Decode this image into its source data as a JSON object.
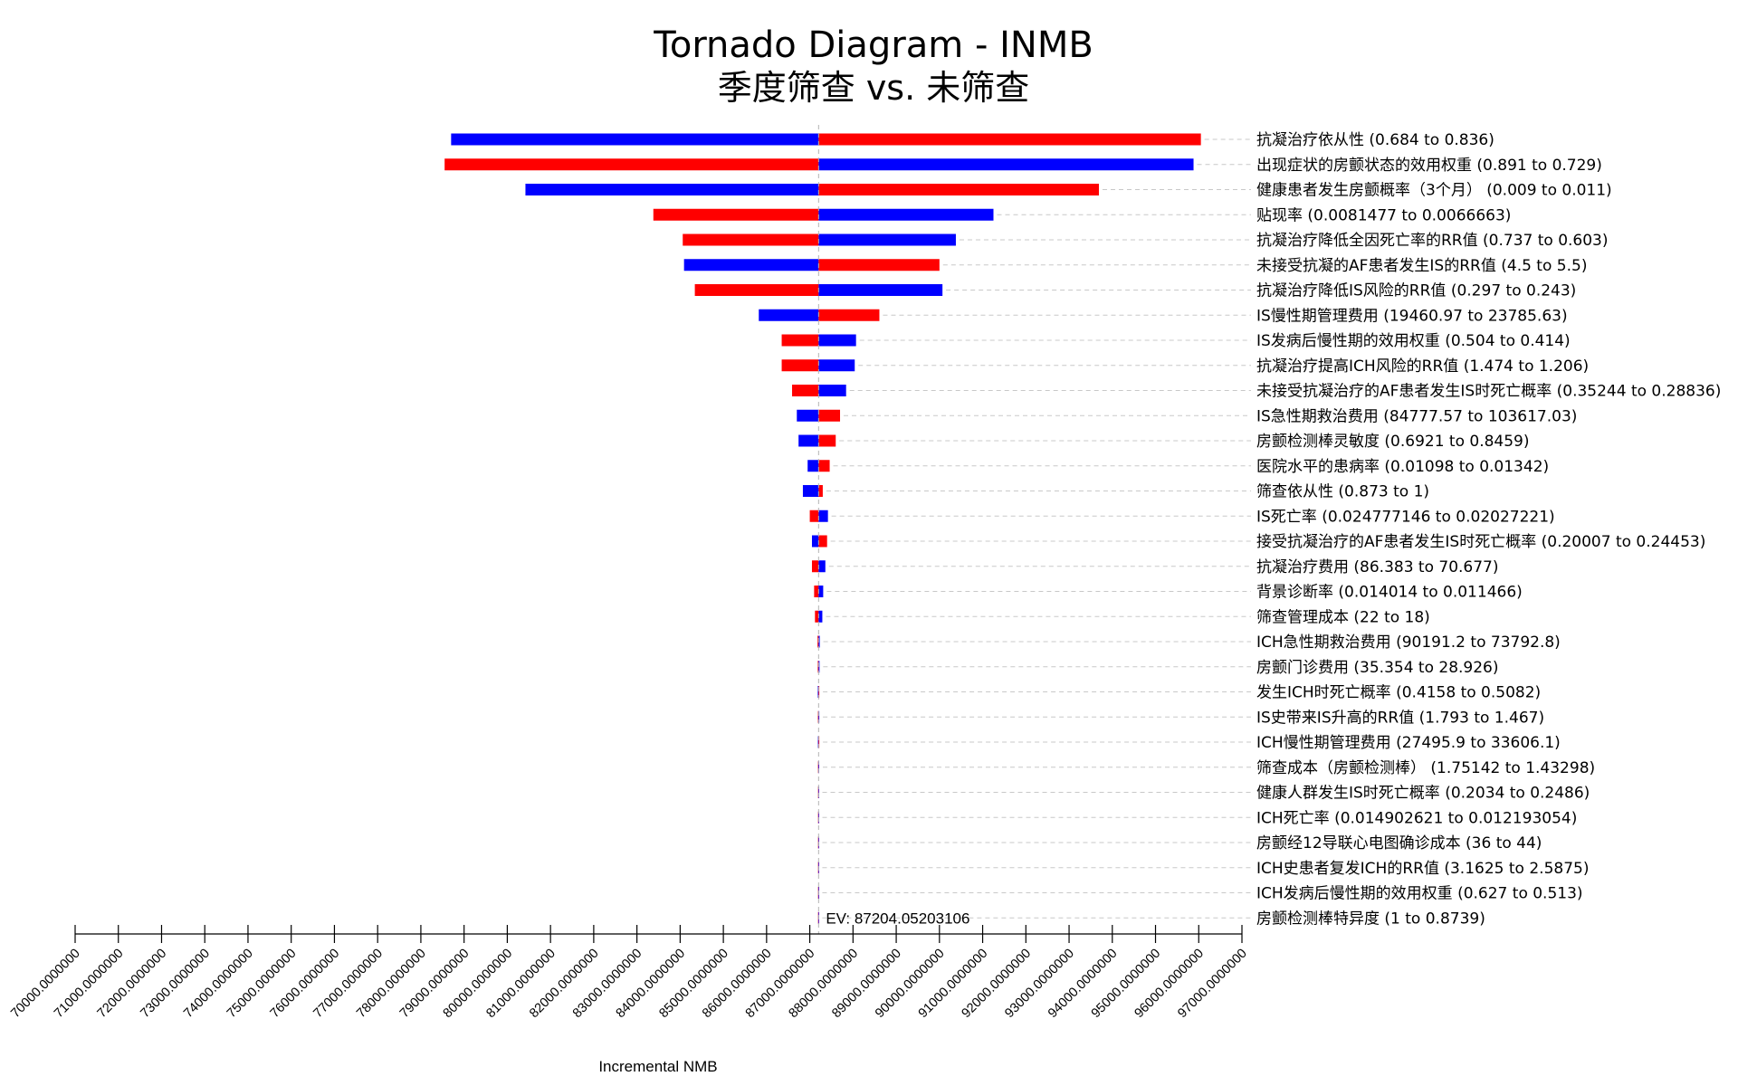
{
  "chart_data": {
    "type": "tornado",
    "title": "Tornado Diagram - INMB",
    "subtitle": "季度筛查 vs. 未筛查",
    "xlabel": "Incremental NMB",
    "xlim": [
      70000,
      97000
    ],
    "x_ticks": [
      "70000.0000000",
      "71000.0000000",
      "72000.0000000",
      "73000.0000000",
      "74000.0000000",
      "75000.0000000",
      "76000.0000000",
      "77000.0000000",
      "78000.0000000",
      "79000.0000000",
      "80000.0000000",
      "81000.0000000",
      "82000.0000000",
      "83000.0000000",
      "84000.0000000",
      "85000.0000000",
      "86000.0000000",
      "87000.0000000",
      "88000.0000000",
      "89000.0000000",
      "90000.0000000",
      "91000.0000000",
      "92000.0000000",
      "93000.0000000",
      "94000.0000000",
      "95000.0000000",
      "96000.0000000",
      "97000.0000000"
    ],
    "x_tick_values": [
      70000,
      71000,
      72000,
      73000,
      74000,
      75000,
      76000,
      77000,
      78000,
      79000,
      80000,
      81000,
      82000,
      83000,
      84000,
      85000,
      86000,
      87000,
      88000,
      89000,
      90000,
      91000,
      92000,
      93000,
      94000,
      95000,
      96000,
      97000
    ],
    "ev": 87204.05203106,
    "ev_label": "EV: 87204.05203106",
    "colors": {
      "red": "#ff0000",
      "blue": "#0000ff",
      "axis": "#000000",
      "guide": "#c8c8c8"
    },
    "rows": [
      {
        "label": "抗凝治疗依从性 (0.684 to 0.836)",
        "min": 78700,
        "max": 96050,
        "left_color": "blue",
        "right_color": "red"
      },
      {
        "label": "出现症状的房颤状态的效用权重 (0.891 to 0.729)",
        "min": 78550,
        "max": 95880,
        "left_color": "red",
        "right_color": "blue"
      },
      {
        "label": "健康患者发生房颤概率（3个月） (0.009 to 0.011)",
        "min": 80420,
        "max": 93690,
        "left_color": "blue",
        "right_color": "red"
      },
      {
        "label": "贴现率 (0.0081477 to 0.0066663)",
        "min": 83380,
        "max": 91250,
        "left_color": "red",
        "right_color": "blue"
      },
      {
        "label": "抗凝治疗降低全因死亡率的RR值 (0.737 to 0.603)",
        "min": 84060,
        "max": 90380,
        "left_color": "red",
        "right_color": "blue"
      },
      {
        "label": "未接受抗凝的AF患者发生IS的RR值 (4.5 to 5.5)",
        "min": 84090,
        "max": 90000,
        "left_color": "blue",
        "right_color": "red"
      },
      {
        "label": "抗凝治疗降低IS风险的RR值 (0.297 to 0.243)",
        "min": 84340,
        "max": 90070,
        "left_color": "red",
        "right_color": "blue"
      },
      {
        "label": "IS慢性期管理费用 (19460.97 to 23785.63)",
        "min": 85820,
        "max": 88610,
        "left_color": "blue",
        "right_color": "red"
      },
      {
        "label": "IS发病后慢性期的效用权重 (0.504 to 0.414)",
        "min": 86350,
        "max": 88070,
        "left_color": "red",
        "right_color": "blue"
      },
      {
        "label": "抗凝治疗提高ICH风险的RR值 (1.474 to 1.206)",
        "min": 86350,
        "max": 88040,
        "left_color": "red",
        "right_color": "blue"
      },
      {
        "label": "未接受抗凝治疗的AF患者发生IS时死亡概率 (0.35244 to 0.28836)",
        "min": 86590,
        "max": 87840,
        "left_color": "red",
        "right_color": "blue"
      },
      {
        "label": "IS急性期救治费用 (84777.57 to 103617.03)",
        "min": 86700,
        "max": 87700,
        "left_color": "blue",
        "right_color": "red"
      },
      {
        "label": "房颤检测棒灵敏度 (0.6921 to 0.8459)",
        "min": 86740,
        "max": 87600,
        "left_color": "blue",
        "right_color": "red"
      },
      {
        "label": "医院水平的患病率 (0.01098 to 0.01342)",
        "min": 86950,
        "max": 87460,
        "left_color": "blue",
        "right_color": "red"
      },
      {
        "label": "筛查依从性 (0.873 to 1)",
        "min": 86840,
        "max": 87300,
        "left_color": "blue",
        "right_color": "red"
      },
      {
        "label": "IS死亡率 (0.024777146 to 0.02027221)",
        "min": 87000,
        "max": 87420,
        "left_color": "red",
        "right_color": "blue"
      },
      {
        "label": "接受抗凝治疗的AF患者发生IS时死亡概率 (0.20007 to 0.24453)",
        "min": 87050,
        "max": 87400,
        "left_color": "blue",
        "right_color": "red"
      },
      {
        "label": "抗凝治疗费用 (86.383 to 70.677)",
        "min": 87050,
        "max": 87360,
        "left_color": "red",
        "right_color": "blue"
      },
      {
        "label": "背景诊断率 (0.014014 to 0.011466)",
        "min": 87100,
        "max": 87310,
        "left_color": "red",
        "right_color": "blue"
      },
      {
        "label": "筛查管理成本 (22 to 18)",
        "min": 87120,
        "max": 87290,
        "left_color": "red",
        "right_color": "blue"
      },
      {
        "label": "ICH急性期救治费用 (90191.2 to 73792.8)",
        "min": 87180,
        "max": 87230,
        "left_color": "red",
        "right_color": "blue"
      },
      {
        "label": "房颤门诊费用 (35.354 to 28.926)",
        "min": 87185,
        "max": 87225,
        "left_color": "red",
        "right_color": "blue"
      },
      {
        "label": "发生ICH时死亡概率 (0.4158 to 0.5082)",
        "min": 87185,
        "max": 87220,
        "left_color": "blue",
        "right_color": "red"
      },
      {
        "label": "IS史带来IS升高的RR值 (1.793 to 1.467)",
        "min": 87188,
        "max": 87220,
        "left_color": "red",
        "right_color": "blue"
      },
      {
        "label": "ICH慢性期管理费用 (27495.9 to 33606.1)",
        "min": 87188,
        "max": 87220,
        "left_color": "blue",
        "right_color": "red"
      },
      {
        "label": "筛查成本（房颤检测棒） (1.75142 to 1.43298)",
        "min": 87190,
        "max": 87218,
        "left_color": "red",
        "right_color": "blue"
      },
      {
        "label": "健康人群发生IS时死亡概率 (0.2034 to 0.2486)",
        "min": 87200,
        "max": 87208,
        "left_color": "red",
        "right_color": "blue"
      },
      {
        "label": "ICH死亡率 (0.014902621 to 0.012193054)",
        "min": 87200,
        "max": 87208,
        "left_color": "red",
        "right_color": "blue"
      },
      {
        "label": "房颤经12导联心电图确诊成本 (36 to 44)",
        "min": 87201,
        "max": 87207,
        "left_color": "red",
        "right_color": "blue"
      },
      {
        "label": "ICH史患者复发ICH的RR值 (3.1625 to 2.5875)",
        "min": 87202,
        "max": 87206,
        "left_color": "red",
        "right_color": "blue"
      },
      {
        "label": "ICH发病后慢性期的效用权重 (0.627 to 0.513)",
        "min": 87202,
        "max": 87206,
        "left_color": "red",
        "right_color": "blue"
      },
      {
        "label": "房颤检测棒特异度 (1 to 0.8739)",
        "min": 87203,
        "max": 87205,
        "left_color": "red",
        "right_color": "blue"
      }
    ]
  }
}
